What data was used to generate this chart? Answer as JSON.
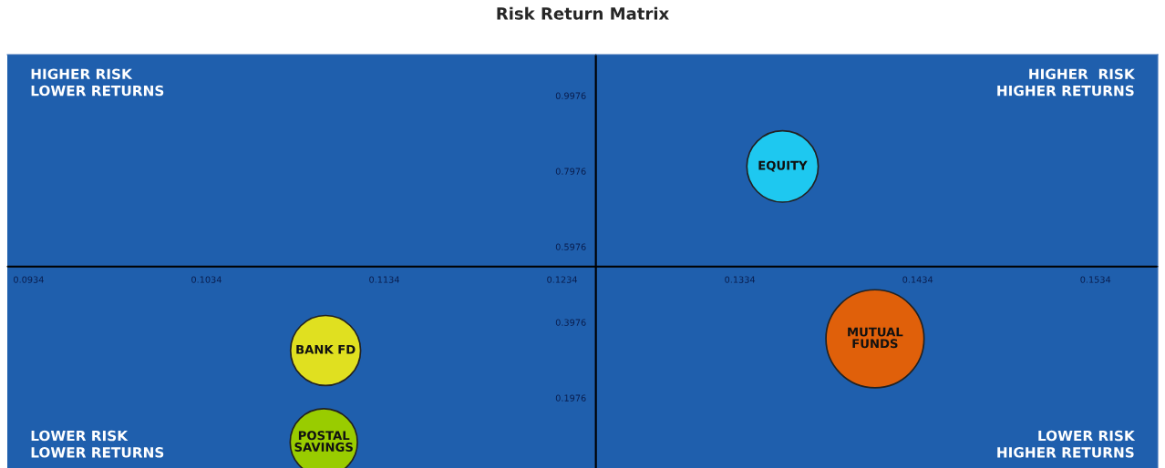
{
  "chart_data": {
    "type": "bubble",
    "title": "Risk Return Matrix",
    "series": [
      {
        "name": "EQUITY",
        "color": "#1ec8f0",
        "x": [
          0.1358
        ],
        "values": [
          0.81
        ],
        "sizes": [
          0.53
        ]
      },
      {
        "name": "MUTUAL\nFUNDS",
        "color": "#e0600a",
        "x": [
          0.141
        ],
        "values": [
          0.354
        ],
        "sizes": [
          1
        ]
      },
      {
        "name": "BANK FD",
        "color": "#e0e020",
        "x": [
          0.1101
        ],
        "values": [
          0.323
        ],
        "sizes": [
          0.51
        ]
      },
      {
        "name": "POSTAL\nSAVINGS",
        "color": "#99cc00",
        "x": [
          0.11
        ],
        "values": [
          0.08
        ],
        "sizes": [
          0.47
        ]
      }
    ],
    "xlim": [
      0.0922,
      0.1569
    ],
    "ylim": [
      0.012,
      1.106
    ],
    "xticks": [
      0.0934,
      0.1034,
      0.1134,
      0.1234,
      0.1334,
      0.1434,
      0.1534
    ],
    "yticks": [
      0.1976,
      0.3976,
      0.5976,
      0.7976,
      0.9976
    ],
    "ref_lines": [
      {
        "axis": "x",
        "value": 0.1253,
        "color": "#000000"
      },
      {
        "axis": "y",
        "value": 0.545,
        "color": "#000000"
      }
    ],
    "annotations": [
      "HIGHER RISK\nLOWER RETURNS",
      "HIGHER  RISK\nHIGHER RETURNS",
      "LOWER RISK\nLOWER RETURNS",
      "LOWER RISK\nHIGHER RETURNS"
    ],
    "grid": false,
    "legend": false
  }
}
